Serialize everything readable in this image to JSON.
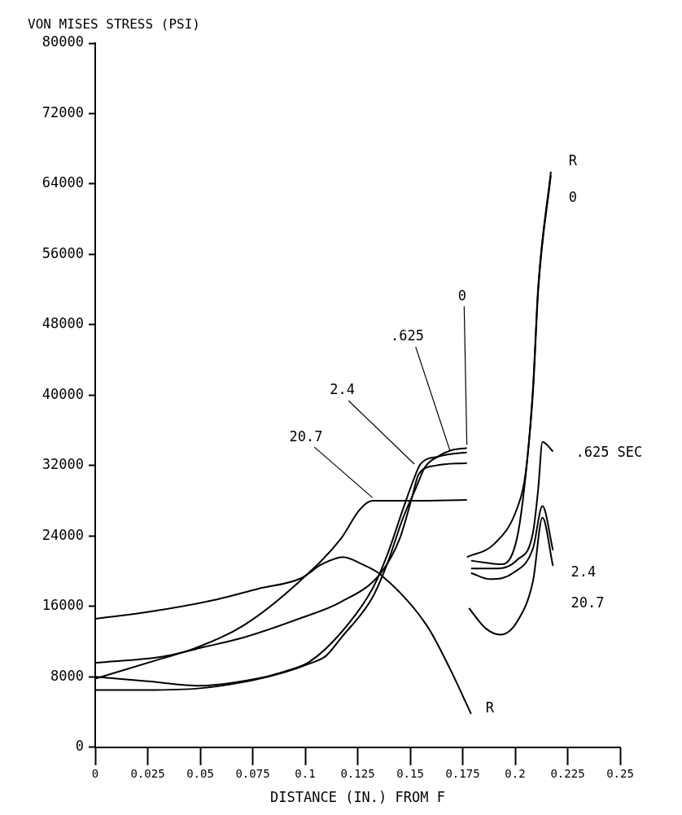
{
  "chart_data": {
    "type": "line",
    "xlabel": "DISTANCE (IN.) FROM F",
    "ylabel": "VON MISES STRESS (PSI)",
    "marker": "none",
    "xlim": [
      0,
      0.25
    ],
    "xticks": [
      0,
      0.025,
      0.05,
      0.075,
      0.1,
      0.125,
      0.15,
      0.175,
      0.2,
      0.225,
      0.25
    ],
    "ylim": [
      0,
      80000
    ],
    "yticks": [
      0,
      8000,
      16000,
      24000,
      32000,
      40000,
      48000,
      56000,
      64000,
      72000,
      80000
    ],
    "series": [
      {
        "color": "#000000",
        "x": [
          0,
          0.025,
          0.05,
          0.075,
          0.09,
          0.102,
          0.11,
          0.117,
          0.132,
          0.139,
          0.1465,
          0.153,
          0.157,
          0.163,
          0.169,
          0.177
        ],
        "values": [
          6500,
          6500,
          6700,
          7600,
          8500,
          9500,
          10400,
          12400,
          17000,
          20800,
          26000,
          29600,
          31800,
          33000,
          33700,
          34000
        ]
      },
      {
        "color": "#000000",
        "x": [
          0,
          0.025,
          0.05,
          0.075,
          0.09,
          0.102,
          0.117,
          0.132,
          0.139,
          0.1465,
          0.151,
          0.155,
          0.163,
          0.169,
          0.177
        ],
        "values": [
          8000,
          7500,
          7000,
          7700,
          8600,
          9700,
          13000,
          18000,
          21800,
          27000,
          30000,
          32200,
          33000,
          33300,
          33500
        ]
      },
      {
        "color": "#000000",
        "x": [
          0,
          0.032,
          0.052,
          0.071,
          0.097,
          0.117,
          0.136,
          0.145,
          0.151,
          0.154,
          0.162,
          0.177
        ],
        "values": [
          9600,
          10300,
          11400,
          12500,
          14600,
          16500,
          19800,
          23700,
          28500,
          31000,
          32000,
          32300
        ]
      },
      {
        "color": "#000000",
        "x": [
          0,
          0.032,
          0.048,
          0.071,
          0.098,
          0.117,
          0.126,
          0.132,
          0.15,
          0.177
        ],
        "values": [
          7800,
          10100,
          11300,
          13900,
          19000,
          23700,
          27000,
          28000,
          28000,
          28100
        ]
      },
      {
        "color": "#000000",
        "x": [
          0,
          0.026,
          0.058,
          0.0775,
          0.098,
          0.108,
          0.118,
          0.127,
          0.136,
          0.158,
          0.169,
          0.179
        ],
        "values": [
          14600,
          15400,
          16800,
          18000,
          19200,
          20800,
          21600,
          20800,
          19600,
          13800,
          8900,
          3800
        ]
      },
      {
        "color": "#000000",
        "x": [
          0.177,
          0.19,
          0.201,
          0.205,
          0.2085,
          0.211,
          0.217
        ],
        "values": [
          21600,
          23100,
          27200,
          31200,
          40900,
          52400,
          65400
        ]
      },
      {
        "color": "#000000",
        "x": [
          0.179,
          0.194,
          0.201,
          0.205,
          0.2085,
          0.211,
          0.217
        ],
        "values": [
          21200,
          20800,
          23900,
          30900,
          40400,
          52000,
          65000
        ]
      },
      {
        "color": "#000000",
        "x": [
          0.179,
          0.19,
          0.201,
          0.2085,
          0.211,
          0.213,
          0.218
        ],
        "values": [
          20300,
          20300,
          21300,
          24400,
          29400,
          34700,
          33600
        ]
      },
      {
        "color": "#000000",
        "x": [
          0.179,
          0.188,
          0.199,
          0.2085,
          0.213,
          0.218
        ],
        "values": [
          19800,
          19100,
          19800,
          22600,
          27400,
          22400
        ]
      },
      {
        "color": "#000000",
        "x": [
          0.178,
          0.186,
          0.193,
          0.201,
          0.2085,
          0.213,
          0.218
        ],
        "values": [
          15800,
          13500,
          12800,
          14300,
          18900,
          26100,
          20600
        ]
      }
    ],
    "annotations": [
      {
        "text": "0",
        "x": 0.177,
        "y": 34000
      },
      {
        "text": ".625",
        "x": 0.169,
        "y": 33300
      },
      {
        "text": "2.4",
        "x": 0.152,
        "y": 31800
      },
      {
        "text": "20.7",
        "x": 0.132,
        "y": 28000
      },
      {
        "text": "R",
        "x": 0.179,
        "y": 3800
      },
      {
        "text": "R",
        "x": 0.217,
        "y": 65400
      },
      {
        "text": "0",
        "x": 0.217,
        "y": 65000
      },
      {
        "text": ".625 SEC",
        "x": 0.218,
        "y": 33600
      },
      {
        "text": "2.4",
        "x": 0.218,
        "y": 22400
      },
      {
        "text": "20.7",
        "x": 0.218,
        "y": 20600
      }
    ]
  }
}
